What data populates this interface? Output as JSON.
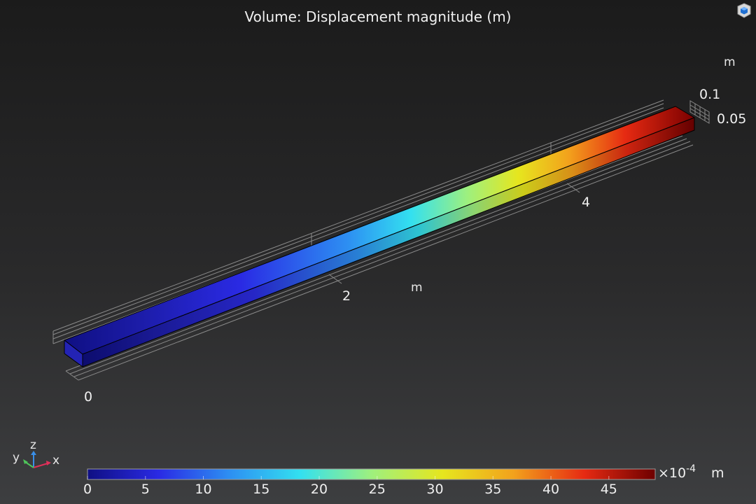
{
  "title": "Volume: Displacement magnitude (m)",
  "axes": {
    "x_unit": "m",
    "z_unit": "m",
    "length_ticks": [
      "0",
      "2",
      "4"
    ],
    "height_ticks": [
      "0.1",
      "0.05"
    ]
  },
  "triad": {
    "x": "x",
    "y": "y",
    "z": "z"
  },
  "colorbar": {
    "ticks": [
      "0",
      "5",
      "10",
      "15",
      "20",
      "25",
      "30",
      "35",
      "40",
      "45"
    ],
    "range": [
      0,
      49
    ],
    "multiplier": "×10",
    "exponent": "-4",
    "unit": "m",
    "colormap": "Rainbow",
    "colors": [
      "#0f0f83",
      "#2a2ae4",
      "#2d8ff2",
      "#33e0f0",
      "#9ef07e",
      "#e6e61e",
      "#f2a21c",
      "#e62a12",
      "#6e0000"
    ]
  },
  "colors": {
    "background_top": "#1b1b1b",
    "background_bottom": "#3d3e40",
    "grid": "#8a8a8a",
    "text": "#ececec"
  }
}
